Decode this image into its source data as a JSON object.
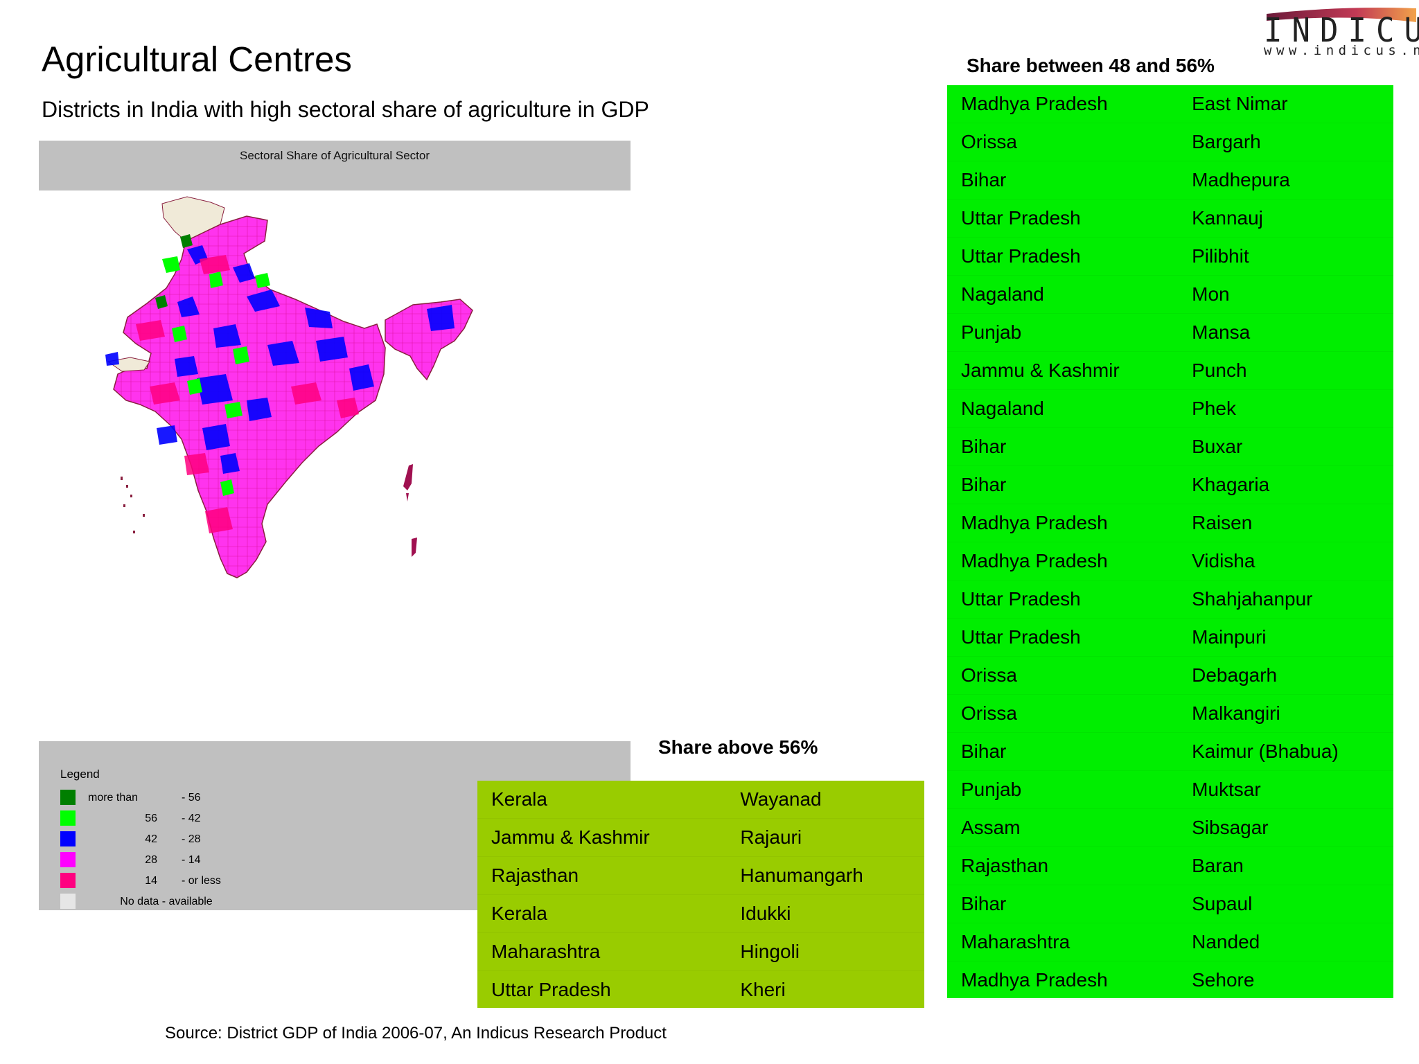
{
  "title": "Agricultural Centres",
  "subtitle": "Districts in India with high sectoral share of agriculture in GDP",
  "logo": {
    "word": "INDICUS",
    "url": "www.indicus.net"
  },
  "map": {
    "header": "Sectoral Share of Agricultural Sector",
    "legend": {
      "title": "Legend",
      "items": [
        {
          "a": "more than",
          "b": "- 56",
          "color": "#007f00"
        },
        {
          "a": "56",
          "b": "- 42",
          "color": "#00ff00"
        },
        {
          "a": "42",
          "b": "- 28",
          "color": "#0000ff"
        },
        {
          "a": "28",
          "b": "- 14",
          "color": "#ff00ff"
        },
        {
          "a": "14",
          "b": "- or less",
          "color": "#ff0080"
        }
      ],
      "na_label": "No data - available",
      "na_color": "#e6e6e6"
    }
  },
  "table_above": {
    "title": "Share above 56%",
    "rows": [
      [
        "Kerala",
        "Wayanad"
      ],
      [
        "Jammu & Kashmir",
        "Rajauri"
      ],
      [
        "Rajasthan",
        "Hanumangarh"
      ],
      [
        "Kerala",
        "Idukki"
      ],
      [
        "Maharashtra",
        "Hingoli"
      ],
      [
        "Uttar Pradesh",
        "Kheri"
      ]
    ]
  },
  "table_between": {
    "title": "Share between 48 and 56%",
    "rows": [
      [
        "Madhya Pradesh",
        "East Nimar"
      ],
      [
        "Orissa",
        "Bargarh"
      ],
      [
        "Bihar",
        "Madhepura"
      ],
      [
        "Uttar Pradesh",
        "Kannauj"
      ],
      [
        "Uttar Pradesh",
        "Pilibhit"
      ],
      [
        "Nagaland",
        "Mon"
      ],
      [
        "Punjab",
        "Mansa"
      ],
      [
        "Jammu & Kashmir",
        "Punch"
      ],
      [
        "Nagaland",
        "Phek"
      ],
      [
        "Bihar",
        "Buxar"
      ],
      [
        "Bihar",
        "Khagaria"
      ],
      [
        "Madhya Pradesh",
        "Raisen"
      ],
      [
        "Madhya Pradesh",
        "Vidisha"
      ],
      [
        "Uttar Pradesh",
        "Shahjahanpur"
      ],
      [
        "Uttar Pradesh",
        "Mainpuri"
      ],
      [
        "Orissa",
        "Debagarh"
      ],
      [
        "Orissa",
        "Malkangiri"
      ],
      [
        "Bihar",
        "Kaimur (Bhabua)"
      ],
      [
        "Punjab",
        "Muktsar"
      ],
      [
        "Assam",
        "Sibsagar"
      ],
      [
        "Rajasthan",
        "Baran"
      ],
      [
        "Bihar",
        "Supaul"
      ],
      [
        "Maharashtra",
        "Nanded"
      ],
      [
        "Madhya Pradesh",
        "Sehore"
      ]
    ]
  },
  "source": "Source: District GDP of India 2006-07, An Indicus Research Product"
}
